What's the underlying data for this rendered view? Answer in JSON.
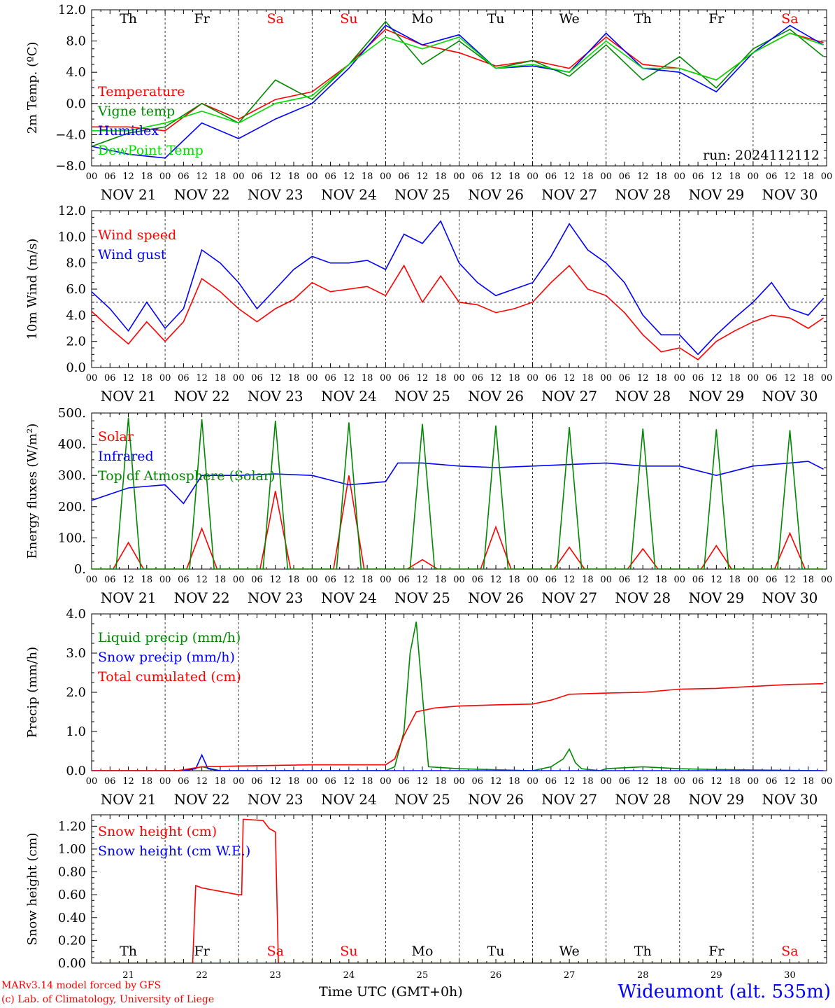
{
  "chart_data": [
    {
      "type": "line",
      "ylabel": "2m Temp. (ºC)",
      "ylim": [
        -8,
        12
      ],
      "y_ticks": [
        -8,
        -4,
        0,
        4,
        8,
        12
      ],
      "y_tick_labels": [
        "−8.0",
        "−4.0",
        "0.0",
        "4.0",
        "8.0",
        "12.0"
      ],
      "reference_line": 0,
      "day_labels": [
        "Th",
        "Fr",
        "Sa",
        "Su",
        "Mo",
        "Tu",
        "We",
        "Th",
        "Fr",
        "Sa"
      ],
      "annotation": "run: 2024112112",
      "x_unit": "hours since NOV 21 00 UTC",
      "series": [
        {
          "name": "Temperature",
          "color": "#ff0000",
          "x": [
            0,
            12,
            24,
            36,
            48,
            60,
            72,
            84,
            96,
            108,
            120,
            132,
            144,
            156,
            168,
            180,
            192,
            204,
            216,
            228,
            239
          ],
          "y": [
            -3.0,
            -3.0,
            -3.5,
            0.0,
            -2.0,
            0.5,
            1.5,
            5.0,
            9.5,
            7.5,
            6.5,
            4.8,
            5.5,
            4.5,
            8.5,
            5.0,
            4.5,
            3.0,
            6.5,
            9.0,
            7.8
          ]
        },
        {
          "name": "Vigne temp",
          "color": "#008800",
          "x": [
            0,
            12,
            24,
            36,
            48,
            60,
            72,
            84,
            96,
            108,
            120,
            132,
            144,
            156,
            168,
            180,
            192,
            204,
            216,
            228,
            239
          ],
          "y": [
            -5.5,
            -3.8,
            -3.0,
            0.0,
            -2.5,
            3.0,
            0.5,
            5.0,
            10.5,
            5.0,
            8.0,
            4.5,
            5.5,
            3.5,
            7.5,
            3.0,
            6.0,
            2.0,
            7.0,
            9.5,
            6.0
          ]
        },
        {
          "name": "Humidex",
          "color": "#0000ff",
          "x": [
            0,
            12,
            24,
            36,
            48,
            60,
            72,
            84,
            96,
            108,
            120,
            132,
            144,
            156,
            168,
            180,
            192,
            204,
            216,
            228,
            239
          ],
          "y": [
            -5.5,
            -6.5,
            -7.0,
            -2.5,
            -4.5,
            -2.0,
            0.0,
            4.5,
            10.0,
            7.5,
            8.8,
            4.5,
            4.8,
            4.0,
            9.0,
            4.5,
            4.0,
            1.5,
            6.5,
            10.0,
            7.5
          ]
        },
        {
          "name": "DewPoint Temp",
          "color": "#00dd00",
          "x": [
            0,
            12,
            24,
            36,
            48,
            60,
            72,
            84,
            96,
            108,
            120,
            132,
            144,
            156,
            168,
            180,
            192,
            204,
            216,
            228,
            239
          ],
          "y": [
            -3.5,
            -3.5,
            -2.5,
            -1.0,
            -2.5,
            0.0,
            1.0,
            5.0,
            8.5,
            7.0,
            8.5,
            4.5,
            5.0,
            4.0,
            8.0,
            4.5,
            4.5,
            3.0,
            6.5,
            9.0,
            7.5
          ]
        }
      ]
    },
    {
      "type": "line",
      "ylabel": "10m Wind (m/s)",
      "ylim": [
        0,
        12
      ],
      "y_ticks": [
        0,
        2,
        4,
        6,
        8,
        10,
        12
      ],
      "y_tick_labels": [
        "0.0",
        "2.0",
        "4.0",
        "6.0",
        "8.0",
        "10.0",
        "12.0"
      ],
      "reference_line": 5,
      "series": [
        {
          "name": "Wind speed",
          "color": "#ff0000",
          "x": [
            0,
            6,
            12,
            18,
            24,
            30,
            36,
            42,
            48,
            54,
            60,
            66,
            72,
            78,
            84,
            90,
            96,
            102,
            108,
            114,
            120,
            126,
            132,
            138,
            144,
            150,
            156,
            162,
            168,
            174,
            180,
            186,
            192,
            198,
            204,
            210,
            216,
            222,
            228,
            234,
            239
          ],
          "y": [
            4.3,
            3.0,
            1.8,
            3.5,
            2.0,
            3.5,
            6.8,
            5.8,
            4.5,
            3.5,
            4.5,
            5.2,
            6.5,
            5.8,
            6.0,
            6.2,
            5.5,
            7.8,
            5.0,
            7.0,
            5.0,
            4.8,
            4.2,
            4.5,
            5.0,
            6.5,
            7.8,
            6.0,
            5.5,
            4.2,
            2.5,
            1.2,
            1.5,
            0.6,
            2.0,
            2.8,
            3.5,
            4.0,
            3.8,
            3.0,
            3.8
          ]
        },
        {
          "name": "Wind gust",
          "color": "#0000ff",
          "x": [
            0,
            6,
            12,
            18,
            24,
            30,
            36,
            42,
            48,
            54,
            60,
            66,
            72,
            78,
            84,
            90,
            96,
            102,
            108,
            114,
            120,
            126,
            132,
            138,
            144,
            150,
            156,
            162,
            168,
            174,
            180,
            186,
            192,
            198,
            204,
            210,
            216,
            222,
            228,
            234,
            239
          ],
          "y": [
            5.8,
            4.5,
            2.8,
            5.0,
            3.0,
            4.5,
            9.0,
            8.0,
            6.5,
            4.5,
            6.0,
            7.5,
            8.5,
            8.0,
            8.0,
            8.2,
            7.5,
            10.2,
            9.5,
            11.2,
            8.0,
            6.5,
            5.5,
            6.0,
            6.5,
            8.5,
            11.0,
            9.0,
            8.0,
            6.5,
            4.0,
            2.5,
            2.5,
            1.0,
            2.5,
            3.8,
            5.0,
            6.5,
            4.5,
            4.0,
            5.3
          ]
        }
      ]
    },
    {
      "type": "line",
      "ylabel": "Energy fluxes (W/m²)",
      "ylim": [
        0,
        500
      ],
      "y_ticks": [
        0,
        100,
        200,
        300,
        400,
        500
      ],
      "y_tick_labels": [
        "0.",
        "100.",
        "200.",
        "300.",
        "400.",
        "500."
      ],
      "series": [
        {
          "name": "Solar",
          "color": "#ff0000",
          "x": [
            0,
            7,
            12,
            17,
            24,
            31,
            36,
            41,
            48,
            55,
            60,
            65,
            72,
            79,
            84,
            89,
            96,
            103,
            108,
            113,
            120,
            127,
            132,
            137,
            144,
            151,
            156,
            161,
            168,
            175,
            180,
            185,
            192,
            199,
            204,
            209,
            216,
            223,
            228,
            233,
            239
          ],
          "y": [
            0,
            0,
            85,
            0,
            0,
            0,
            130,
            0,
            0,
            0,
            250,
            0,
            0,
            0,
            300,
            0,
            0,
            0,
            30,
            0,
            0,
            0,
            135,
            0,
            0,
            0,
            70,
            0,
            0,
            0,
            65,
            0,
            0,
            0,
            75,
            0,
            0,
            0,
            115,
            0,
            0
          ]
        },
        {
          "name": "Infrared",
          "color": "#0000ff",
          "x": [
            0,
            12,
            24,
            30,
            36,
            48,
            60,
            72,
            84,
            96,
            100,
            108,
            120,
            132,
            144,
            156,
            168,
            180,
            192,
            204,
            216,
            228,
            234,
            239
          ],
          "y": [
            220,
            260,
            270,
            210,
            300,
            300,
            305,
            300,
            270,
            280,
            340,
            340,
            330,
            325,
            330,
            335,
            340,
            330,
            330,
            300,
            330,
            340,
            345,
            320
          ]
        },
        {
          "name": "Top of Atmosphere (Solar)",
          "color": "#008800",
          "x": [
            0,
            8,
            12,
            16,
            24,
            32,
            36,
            40,
            48,
            56,
            60,
            64,
            72,
            80,
            84,
            88,
            96,
            104,
            108,
            112,
            120,
            128,
            132,
            136,
            144,
            152,
            156,
            160,
            168,
            176,
            180,
            184,
            192,
            200,
            204,
            208,
            216,
            224,
            228,
            232,
            239
          ],
          "y": [
            0,
            0,
            485,
            0,
            0,
            0,
            480,
            0,
            0,
            0,
            475,
            0,
            0,
            0,
            470,
            0,
            0,
            0,
            465,
            0,
            0,
            0,
            460,
            0,
            0,
            0,
            455,
            0,
            0,
            0,
            450,
            0,
            0,
            0,
            448,
            0,
            0,
            0,
            445,
            0,
            0
          ]
        }
      ]
    },
    {
      "type": "line",
      "ylabel": "Precip (mm/h)",
      "ylim": [
        0,
        4
      ],
      "y_ticks": [
        0,
        1,
        2,
        3,
        4
      ],
      "y_tick_labels": [
        "0.0",
        "1.0",
        "2.0",
        "3.0",
        "4.0"
      ],
      "series": [
        {
          "name": "Liquid precip (mm/h)",
          "color": "#008800",
          "x": [
            0,
            30,
            36,
            42,
            96,
            99,
            102,
            104,
            106,
            110,
            120,
            144,
            150,
            154,
            156,
            158,
            160,
            166,
            168,
            180,
            192,
            204,
            239
          ],
          "y": [
            0,
            0,
            0.1,
            0,
            0,
            0.1,
            1.0,
            3.0,
            3.8,
            0.1,
            0.05,
            0,
            0.1,
            0.3,
            0.55,
            0.2,
            0.05,
            0,
            0.05,
            0.1,
            0.05,
            0.03,
            0
          ]
        },
        {
          "name": "Snow precip (mm/h)",
          "color": "#0000ff",
          "x": [
            0,
            30,
            34,
            36,
            38,
            42,
            239
          ],
          "y": [
            0,
            0,
            0.05,
            0.4,
            0.05,
            0,
            0
          ]
        },
        {
          "name": "Total cumulated (cm)",
          "color": "#ff0000",
          "x": [
            0,
            28,
            36,
            48,
            72,
            84,
            96,
            99,
            102,
            106,
            112,
            120,
            132,
            144,
            150,
            156,
            168,
            180,
            192,
            204,
            216,
            228,
            239
          ],
          "y": [
            0,
            0,
            0.1,
            0.12,
            0.15,
            0.15,
            0.15,
            0.3,
            0.9,
            1.5,
            1.6,
            1.65,
            1.68,
            1.7,
            1.8,
            1.95,
            1.98,
            2.0,
            2.08,
            2.1,
            2.15,
            2.2,
            2.22
          ]
        }
      ]
    },
    {
      "type": "line",
      "ylabel": "Snow height (cm)",
      "ylim": [
        0,
        1.3
      ],
      "y_ticks": [
        0,
        0.2,
        0.4,
        0.6,
        0.8,
        1.0,
        1.2
      ],
      "y_tick_labels": [
        "0.00",
        "0.20",
        "0.40",
        "0.60",
        "0.80",
        "1.00",
        "1.20"
      ],
      "day_labels": [
        "Th",
        "Fr",
        "Sa",
        "Su",
        "Mo",
        "Tu",
        "We",
        "Th",
        "Fr",
        "Sa"
      ],
      "day_numbers": [
        "21",
        "22",
        "23",
        "24",
        "25",
        "26",
        "27",
        "28",
        "29",
        "30"
      ],
      "xlabel": "Time UTC (GMT+0h)",
      "series": [
        {
          "name": "Snow height (cm)",
          "color": "#ff0000",
          "x": [
            0,
            33,
            34,
            36,
            42,
            48,
            49,
            49.5,
            50,
            56,
            58,
            60,
            61,
            239
          ],
          "y": [
            0,
            0,
            0.68,
            0.66,
            0.63,
            0.6,
            0.6,
            1.26,
            1.26,
            1.25,
            1.18,
            1.15,
            0,
            0
          ]
        },
        {
          "name": "Snow height (cm W.E.)",
          "color": "#0000ff",
          "x": [
            0,
            239
          ],
          "y": [
            0,
            0
          ]
        }
      ]
    }
  ],
  "axis": {
    "hour_labels": [
      "00",
      "06",
      "12",
      "18"
    ],
    "end_label": "00",
    "date_labels": [
      "NOV 21",
      "NOV 22",
      "NOV 23",
      "NOV 24",
      "NOV 25",
      "NOV 26",
      "NOV 27",
      "NOV 28",
      "NOV 29",
      "NOV 30"
    ],
    "weekend_days": [
      "Sa",
      "Su"
    ],
    "weekend_color": "#ff0000"
  },
  "footer": {
    "credit_line1": "MARv3.14 model forced by GFS",
    "credit_line2": "(c) Lab. of Climatology, University of Liege",
    "station": "Wideumont (alt. 535m)",
    "x_title": "Time UTC (GMT+0h)"
  }
}
